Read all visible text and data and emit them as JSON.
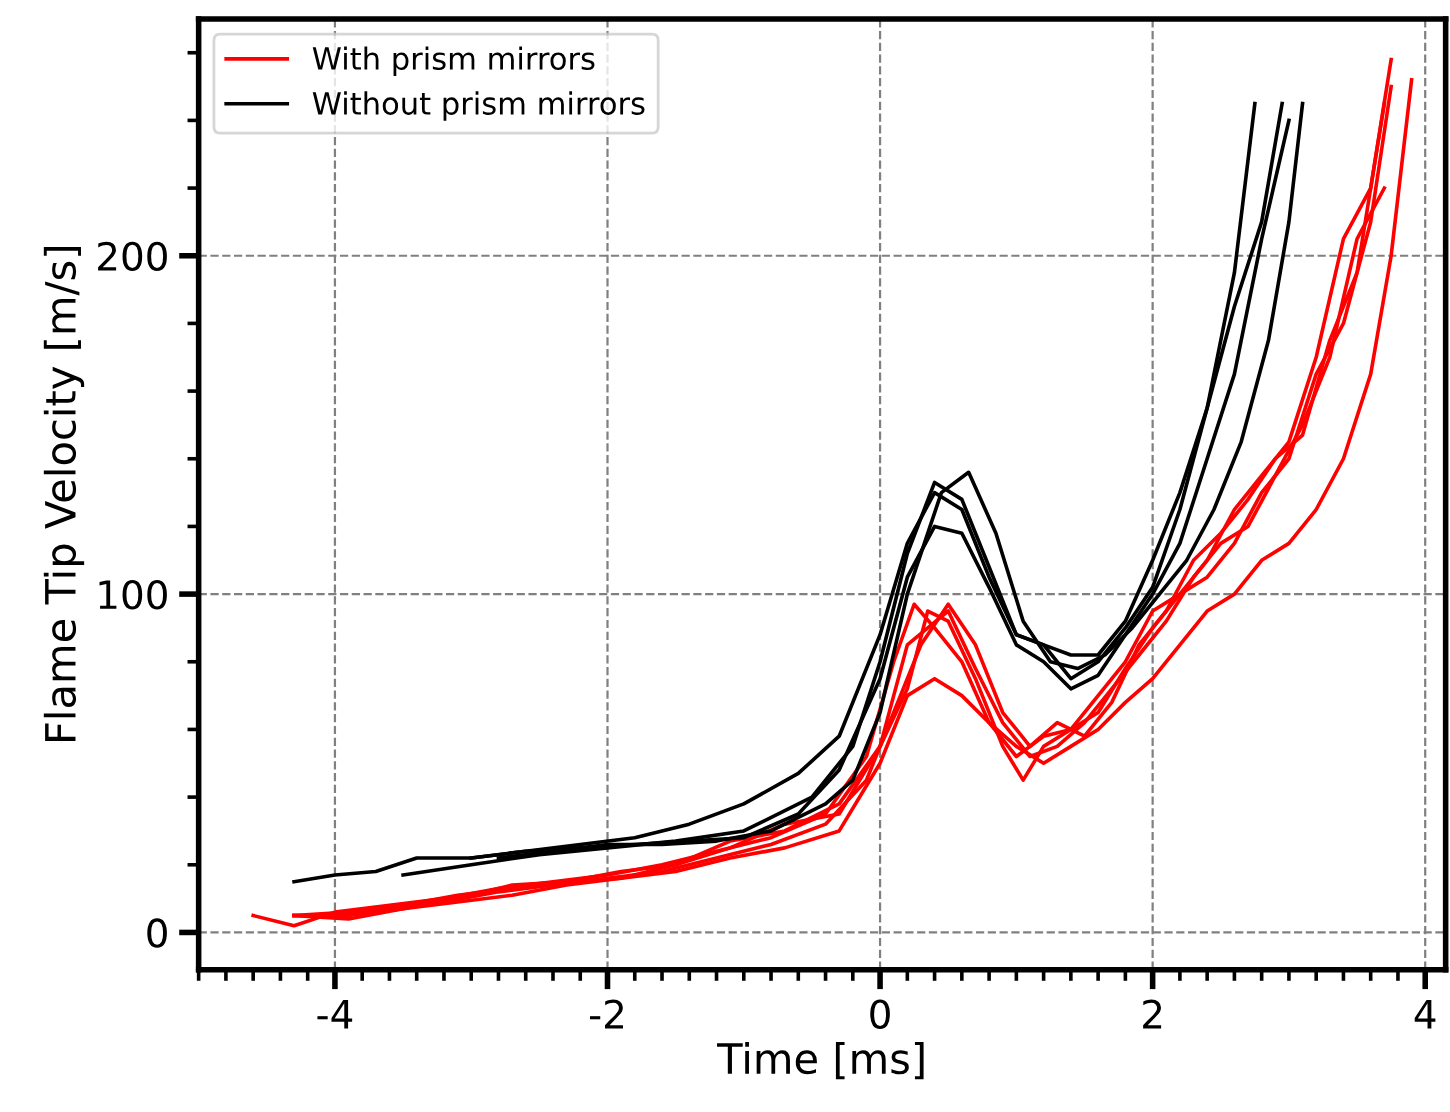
{
  "chart_data": {
    "type": "line",
    "xlabel": "Time [ms]",
    "ylabel": "Flame Tip Velocity [m/s]",
    "xlim": [
      -5,
      4.15
    ],
    "ylim": [
      -11,
      270
    ],
    "xticks": [
      -4,
      -2,
      0,
      2,
      4
    ],
    "yticks": [
      0,
      100,
      200
    ],
    "grid": true,
    "legend": "top left",
    "marker": "none",
    "line_style": "solid",
    "series": [
      {
        "name": "With prism mirrors",
        "color": "#ff0000",
        "x": [
          -4.6,
          -4.3,
          -4.0,
          -3.6,
          -3.2,
          -2.8,
          -2.4,
          -2.0,
          -1.6,
          -1.2,
          -0.8,
          -0.4,
          -0.1,
          0.1,
          0.25,
          0.4,
          0.6,
          0.8,
          1.0,
          1.2,
          1.4,
          1.6,
          1.8,
          2.0,
          2.2,
          2.4,
          2.6,
          2.8,
          3.0,
          3.2,
          3.4,
          3.6,
          3.75
        ],
        "values": [
          5,
          2,
          6,
          8,
          10,
          13,
          15,
          17,
          20,
          24,
          28,
          35,
          52,
          80,
          97,
          90,
          80,
          62,
          52,
          58,
          60,
          70,
          80,
          95,
          100,
          110,
          125,
          135,
          145,
          170,
          205,
          220,
          258
        ]
      },
      {
        "color": "#ff0000",
        "x": [
          -4.3,
          -4.0,
          -3.6,
          -3.2,
          -2.8,
          -2.4,
          -2.0,
          -1.6,
          -1.2,
          -0.8,
          -0.4,
          -0.1,
          0.1,
          0.3,
          0.5,
          0.7,
          0.9,
          1.1,
          1.3,
          1.5,
          1.7,
          1.9,
          2.1,
          2.3,
          2.5,
          2.7,
          2.9,
          3.1,
          3.3,
          3.5,
          3.7
        ],
        "values": [
          5,
          5,
          7,
          9,
          12,
          14,
          16,
          18,
          22,
          26,
          32,
          45,
          65,
          85,
          97,
          85,
          65,
          55,
          62,
          58,
          68,
          85,
          95,
          110,
          118,
          128,
          140,
          147,
          175,
          195,
          245
        ]
      },
      {
        "color": "#ff0000",
        "x": [
          -4.3,
          -3.9,
          -3.5,
          -3.1,
          -2.7,
          -2.3,
          -1.9,
          -1.5,
          -1.1,
          -0.7,
          -0.3,
          0,
          0.2,
          0.35,
          0.5,
          0.7,
          0.9,
          1.05,
          1.2,
          1.4,
          1.6,
          1.8,
          2.0,
          2.2,
          2.4,
          2.6,
          2.8,
          3.0,
          3.2,
          3.4,
          3.6,
          3.75
        ],
        "values": [
          5,
          6,
          8,
          11,
          13,
          15,
          18,
          20,
          27,
          30,
          38,
          55,
          72,
          95,
          92,
          75,
          55,
          45,
          55,
          60,
          65,
          78,
          90,
          100,
          105,
          115,
          130,
          140,
          165,
          180,
          210,
          250
        ]
      },
      {
        "color": "#ff0000",
        "x": [
          -4.3,
          -3.9,
          -3.5,
          -3.1,
          -2.7,
          -2.3,
          -1.9,
          -1.5,
          -1.1,
          -0.7,
          -0.3,
          0,
          0.2,
          0.4,
          0.6,
          0.8,
          1.0,
          1.2,
          1.4,
          1.6,
          1.8,
          2.0,
          2.2,
          2.4,
          2.6,
          2.8,
          3.0,
          3.2,
          3.4,
          3.6,
          3.75,
          3.9
        ],
        "values": [
          5,
          5,
          7,
          9,
          11,
          14,
          16,
          18,
          22,
          25,
          30,
          50,
          70,
          75,
          70,
          62,
          55,
          50,
          55,
          60,
          68,
          75,
          85,
          95,
          100,
          110,
          115,
          125,
          140,
          165,
          200,
          252
        ]
      },
      {
        "color": "#ff0000",
        "x": [
          -4.3,
          -3.9,
          -3.5,
          -3.1,
          -2.7,
          -2.3,
          -1.9,
          -1.5,
          -1.1,
          -0.7,
          -0.3,
          0,
          0.2,
          0.35,
          0.5,
          0.7,
          0.9,
          1.1,
          1.3,
          1.5,
          1.7,
          1.9,
          2.1,
          2.3,
          2.5,
          2.7,
          2.9,
          3.1,
          3.3,
          3.5,
          3.7
        ],
        "values": [
          5,
          4,
          7,
          10,
          14,
          15,
          16,
          20,
          25,
          32,
          35,
          55,
          85,
          90,
          95,
          78,
          62,
          52,
          55,
          62,
          72,
          82,
          92,
          105,
          115,
          120,
          135,
          150,
          170,
          205,
          220
        ]
      },
      {
        "name": "Without prism mirrors",
        "color": "#000000",
        "x": [
          -4.3,
          -4.0,
          -3.7,
          -3.4,
          -3.0,
          -2.6,
          -2.2,
          -1.8,
          -1.4,
          -1.0,
          -0.6,
          -0.3,
          0,
          0.2,
          0.4,
          0.6,
          0.8,
          1.0,
          1.2,
          1.4,
          1.6,
          1.8,
          2.0,
          2.2,
          2.4,
          2.6,
          2.75
        ],
        "values": [
          15,
          17,
          18,
          22,
          22,
          24,
          26,
          28,
          32,
          38,
          47,
          58,
          88,
          115,
          130,
          125,
          105,
          88,
          85,
          82,
          82,
          92,
          110,
          130,
          155,
          195,
          245
        ]
      },
      {
        "color": "#000000",
        "x": [
          -3.5,
          -3.0,
          -2.5,
          -2.0,
          -1.5,
          -1.0,
          -0.5,
          -0.2,
          0,
          0.2,
          0.4,
          0.6,
          0.8,
          1.0,
          1.2,
          1.4,
          1.6,
          1.8,
          2.0,
          2.2,
          2.4,
          2.6,
          2.8,
          2.95
        ],
        "values": [
          17,
          20,
          23,
          25,
          27,
          30,
          40,
          55,
          80,
          112,
          133,
          128,
          108,
          88,
          85,
          75,
          80,
          90,
          102,
          125,
          155,
          185,
          210,
          245
        ]
      },
      {
        "color": "#000000",
        "x": [
          -3.0,
          -2.6,
          -2.2,
          -1.8,
          -1.4,
          -1.0,
          -0.6,
          -0.3,
          0,
          0.2,
          0.4,
          0.6,
          0.8,
          1.0,
          1.2,
          1.4,
          1.6,
          1.8,
          2.0,
          2.2,
          2.4,
          2.6,
          2.8,
          3.0
        ],
        "values": [
          22,
          24,
          25,
          26,
          27,
          28,
          35,
          48,
          75,
          105,
          120,
          118,
          102,
          85,
          80,
          72,
          76,
          88,
          100,
          115,
          140,
          165,
          205,
          240
        ]
      },
      {
        "color": "#000000",
        "x": [
          -2.8,
          -2.4,
          -2.0,
          -1.6,
          -1.2,
          -0.8,
          -0.4,
          -0.2,
          0,
          0.2,
          0.45,
          0.65,
          0.85,
          1.05,
          1.25,
          1.45,
          1.65,
          1.85,
          2.05,
          2.25,
          2.45,
          2.65,
          2.85,
          3.0,
          3.1
        ],
        "values": [
          22,
          24,
          26,
          26,
          27,
          30,
          38,
          45,
          65,
          100,
          130,
          136,
          118,
          92,
          80,
          78,
          82,
          90,
          100,
          110,
          125,
          145,
          175,
          210,
          245
        ]
      }
    ]
  }
}
